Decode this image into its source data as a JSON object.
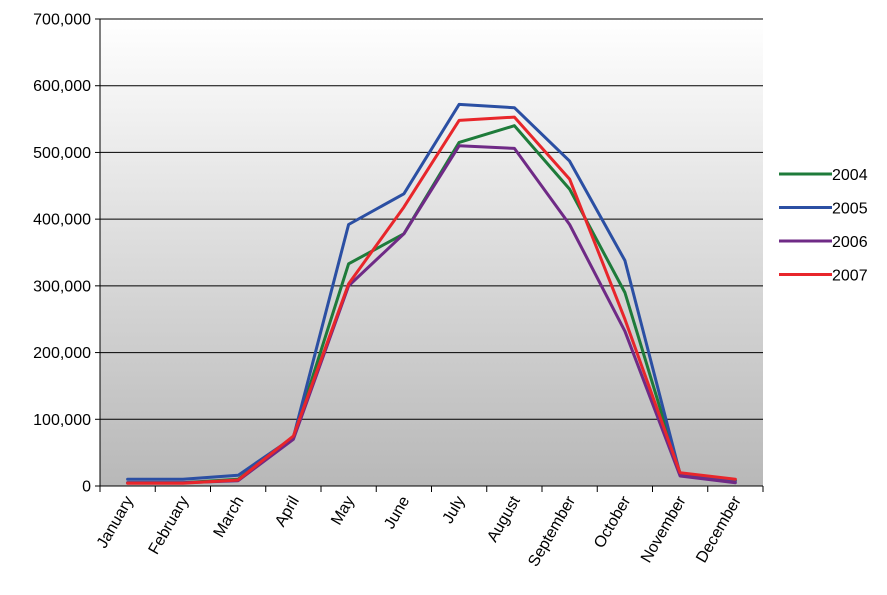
{
  "chart_data": {
    "type": "line",
    "categories": [
      "January",
      "February",
      "March",
      "April",
      "May",
      "June",
      "July",
      "August",
      "September",
      "October",
      "November",
      "December"
    ],
    "ylim": [
      0,
      700000
    ],
    "yticks": [
      0,
      100000,
      200000,
      300000,
      400000,
      500000,
      600000,
      700000
    ],
    "ytick_labels": [
      "0",
      "100,000",
      "200,000",
      "300,000",
      "400,000",
      "500,000",
      "600,000",
      "700,000"
    ],
    "grid": true,
    "legend_position": "right",
    "plot_background": "gradient-white-to-gray",
    "series": [
      {
        "name": "2004",
        "color": "#1e7b3a",
        "values": [
          5000,
          5000,
          10000,
          73000,
          333000,
          378000,
          515000,
          540000,
          445000,
          290000,
          18000,
          8000
        ]
      },
      {
        "name": "2005",
        "color": "#2b4fa3",
        "values": [
          10000,
          10000,
          16000,
          73000,
          392000,
          438000,
          572000,
          567000,
          487000,
          338000,
          18000,
          8000
        ]
      },
      {
        "name": "2006",
        "color": "#6f2a86",
        "values": [
          5000,
          5000,
          8000,
          70000,
          300000,
          378000,
          510000,
          506000,
          392000,
          232000,
          15000,
          5000
        ]
      },
      {
        "name": "2007",
        "color": "#e8262b",
        "values": [
          4000,
          4000,
          9000,
          75000,
          303000,
          418000,
          548000,
          553000,
          460000,
          250000,
          20000,
          10000
        ]
      }
    ]
  }
}
